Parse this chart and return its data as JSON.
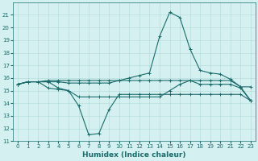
{
  "xlabel": "Humidex (Indice chaleur)",
  "x": [
    0,
    1,
    2,
    3,
    4,
    5,
    6,
    7,
    8,
    9,
    10,
    11,
    12,
    13,
    14,
    15,
    16,
    17,
    18,
    19,
    20,
    21,
    22,
    23
  ],
  "line1_spike": [
    15.5,
    15.7,
    15.7,
    15.7,
    15.7,
    15.6,
    15.6,
    15.6,
    15.6,
    15.6,
    15.8,
    16.0,
    16.2,
    16.4,
    19.3,
    21.2,
    20.8,
    18.3,
    16.6,
    16.4,
    16.3,
    15.9,
    15.3,
    15.3
  ],
  "line2_flat_high": [
    15.5,
    15.7,
    15.7,
    15.8,
    15.8,
    15.8,
    15.8,
    15.8,
    15.8,
    15.8,
    15.8,
    15.8,
    15.8,
    15.8,
    15.8,
    15.8,
    15.8,
    15.8,
    15.8,
    15.8,
    15.8,
    15.8,
    15.3,
    14.2
  ],
  "line3_mid": [
    15.5,
    15.7,
    15.7,
    15.7,
    15.2,
    15.0,
    14.5,
    14.5,
    14.5,
    14.5,
    14.5,
    14.5,
    14.5,
    14.5,
    14.5,
    15.0,
    15.5,
    15.8,
    15.5,
    15.5,
    15.5,
    15.5,
    15.2,
    14.2
  ],
  "line4_dip": [
    15.5,
    15.7,
    15.7,
    15.2,
    15.1,
    15.0,
    13.8,
    11.5,
    11.6,
    13.5,
    14.7,
    14.7,
    14.7,
    14.7,
    14.7,
    14.7,
    14.7,
    14.7,
    14.7,
    14.7,
    14.7,
    14.7,
    14.7,
    14.2
  ],
  "line_color": "#1a6b6b",
  "bg_color": "#d4f0f0",
  "grid_color": "#afd8d8",
  "ylim": [
    11,
    22
  ],
  "yticks": [
    11,
    12,
    13,
    14,
    15,
    16,
    17,
    18,
    19,
    20,
    21
  ],
  "xlim": [
    -0.5,
    23.5
  ],
  "xticks": [
    0,
    1,
    2,
    3,
    4,
    5,
    6,
    7,
    8,
    9,
    10,
    11,
    12,
    13,
    14,
    15,
    16,
    17,
    18,
    19,
    20,
    21,
    22,
    23
  ]
}
